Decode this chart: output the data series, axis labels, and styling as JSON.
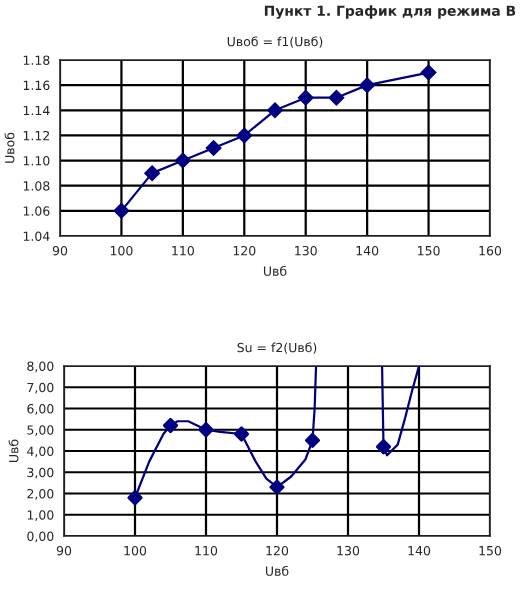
{
  "chart_data": [
    {
      "type": "line",
      "title": "Uвоб = f1(Uвб)",
      "xlabel": "Uвб",
      "ylabel": "Uвоб",
      "annotations": [
        "Пункт 1. График для режима В"
      ],
      "series": [
        {
          "color": "#000080",
          "x": [
            100,
            105,
            110,
            115,
            120,
            125,
            130,
            135,
            140,
            150
          ],
          "values": [
            1.06,
            1.09,
            1.1,
            1.11,
            1.12,
            1.14,
            1.15,
            1.15,
            1.16,
            1.17
          ]
        }
      ],
      "marker": "diamond",
      "line_style": "solid",
      "grid": true,
      "legend": false,
      "xlim": [
        90,
        160
      ],
      "xticks": [
        90,
        100,
        110,
        120,
        130,
        140,
        150,
        160
      ],
      "ylim": [
        1.04,
        1.18
      ],
      "yticks": [
        {
          "value": 1.04,
          "label": "1.04"
        },
        {
          "value": 1.06,
          "label": "1.06"
        },
        {
          "value": 1.08,
          "label": "1.08"
        },
        {
          "value": 1.1,
          "label": "1.10"
        },
        {
          "value": 1.12,
          "label": "1.12"
        },
        {
          "value": 1.14,
          "label": "1.14"
        },
        {
          "value": 1.16,
          "label": "1.16"
        },
        {
          "value": 1.18,
          "label": "1.18"
        }
      ]
    },
    {
      "type": "line",
      "title": "Su = f2(Uвб)",
      "xlabel": "Uвб",
      "ylabel": "Uвб",
      "series": [
        {
          "type": "line",
          "color": "#000080",
          "marker": "none",
          "x": [
            100,
            102,
            104,
            105,
            106,
            107.5,
            110,
            112,
            115,
            117,
            118.5,
            120,
            122,
            124,
            125,
            125.3,
            125.5,
            130,
            134.8,
            135,
            135.5,
            137,
            138,
            139,
            140
          ],
          "values": [
            1.8,
            3.5,
            4.8,
            5.2,
            5.4,
            5.4,
            5.0,
            4.9,
            4.8,
            3.5,
            2.7,
            2.3,
            2.8,
            3.6,
            4.5,
            6.0,
            8.0,
            null,
            8.0,
            4.2,
            3.8,
            4.3,
            5.5,
            6.8,
            8.0
          ]
        },
        {
          "type": "scatter",
          "color": "#000080",
          "marker": "diamond",
          "x": [
            100,
            105,
            110,
            115,
            120,
            125,
            135
          ],
          "values": [
            1.8,
            5.2,
            5.0,
            4.8,
            2.3,
            4.5,
            4.2
          ]
        }
      ],
      "grid": true,
      "legend": false,
      "xlim": [
        90,
        150
      ],
      "xticks": [
        90,
        100,
        110,
        120,
        130,
        140,
        150
      ],
      "ylim": [
        0,
        8
      ],
      "yticks": [
        {
          "value": 0,
          "label": "0,00"
        },
        {
          "value": 1,
          "label": "1,00"
        },
        {
          "value": 2,
          "label": "2,00"
        },
        {
          "value": 3,
          "label": "3,00"
        },
        {
          "value": 4,
          "label": "4,00"
        },
        {
          "value": 5,
          "label": "5,00"
        },
        {
          "value": 6,
          "label": "6,00"
        },
        {
          "value": 7,
          "label": "7,00"
        },
        {
          "value": 8,
          "label": "8,00"
        }
      ]
    }
  ]
}
